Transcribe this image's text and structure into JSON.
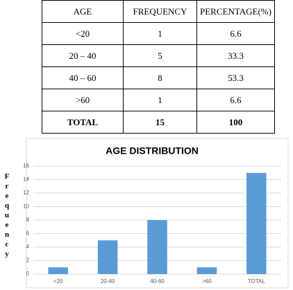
{
  "table": {
    "header": [
      "AGE",
      "FREQUENCY",
      "PERCENTAGE(%)"
    ],
    "rows": [
      [
        "<20",
        1,
        6.6
      ],
      [
        "20 – 40",
        5,
        33.3
      ],
      [
        "40 – 60",
        8,
        53.3
      ],
      [
        ">60",
        1,
        6.6
      ],
      [
        "TOTAL",
        15,
        100
      ]
    ]
  },
  "chart_data": {
    "type": "bar",
    "title": "AGE DISTRIBUTION",
    "y_label": "Frequency",
    "categories": [
      "<20",
      "20-40",
      "40-60",
      ">60",
      "TOTAL"
    ],
    "values": [
      1,
      5,
      8,
      1,
      15
    ],
    "color": "#5b9bd5",
    "ylim": [
      0,
      16
    ],
    "yticks": [
      0,
      2,
      4,
      6,
      8,
      10,
      12,
      14,
      16
    ],
    "grid": true
  }
}
